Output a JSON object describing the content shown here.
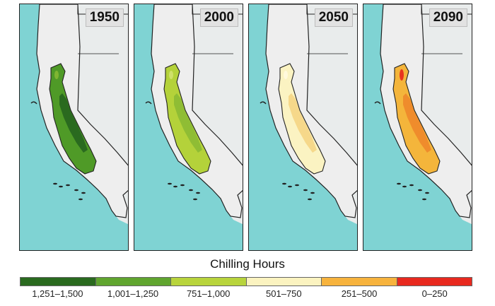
{
  "panels": [
    {
      "year": "1950",
      "fill": {
        "base": "#4f9a27",
        "patch": "#2a6a1f",
        "accent": "#7fb532"
      }
    },
    {
      "year": "2000",
      "fill": {
        "base": "#b4d23a",
        "patch": "#8fbd34",
        "accent": "#cfe06a"
      }
    },
    {
      "year": "2050",
      "fill": {
        "base": "#fbf3c2",
        "patch": "#f6d88a",
        "accent": "#fff9dc"
      }
    },
    {
      "year": "2090",
      "fill": {
        "base": "#f4b53b",
        "patch": "#ef8c2c",
        "accent": "#e8341f"
      }
    }
  ],
  "legend": {
    "title": "Chilling Hours",
    "classes": [
      {
        "label": "1,251–1,500",
        "color": "#2a6a1f"
      },
      {
        "label": "1,001–1,250",
        "color": "#60a52f"
      },
      {
        "label": "751–1,000",
        "color": "#b8d43c"
      },
      {
        "label": "501–750",
        "color": "#fbf3c0"
      },
      {
        "label": "251–500",
        "color": "#f7b33d"
      },
      {
        "label": "0–250",
        "color": "#e8291f"
      }
    ]
  },
  "colors": {
    "ocean": "#7fd3d3",
    "land": "#e9ecec",
    "border": "#222222"
  }
}
